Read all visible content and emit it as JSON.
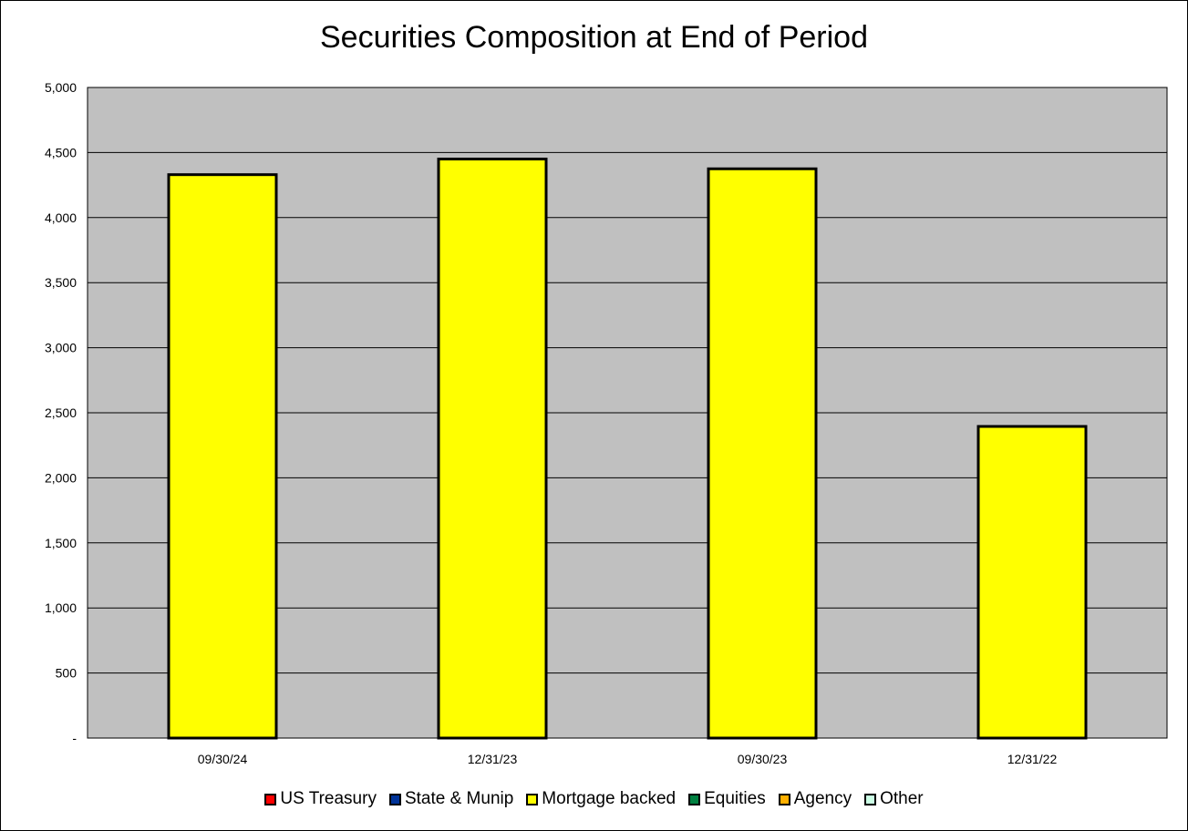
{
  "chart_data": {
    "type": "bar",
    "title": "Securities Composition at End of Period",
    "xlabel": "",
    "ylabel": "",
    "categories": [
      "09/30/24",
      "12/31/23",
      "09/30/23",
      "12/31/22"
    ],
    "ylim": [
      0,
      5000
    ],
    "yticks": [
      0,
      500,
      1000,
      1500,
      2000,
      2500,
      3000,
      3500,
      4000,
      4500,
      5000
    ],
    "ytick_labels": [
      "-",
      "500",
      "1,000",
      "1,500",
      "2,000",
      "2,500",
      "3,000",
      "3,500",
      "4,000",
      "4,500",
      "5,000"
    ],
    "grid": true,
    "stacked": true,
    "legend_position": "bottom",
    "plot_background": "#c0c0c0",
    "series": [
      {
        "name": "US Treasury",
        "color": "#ff0000",
        "values": [
          0,
          0,
          0,
          0
        ]
      },
      {
        "name": "State & Munip",
        "color": "#003399",
        "values": [
          0,
          0,
          0,
          0
        ]
      },
      {
        "name": "Mortgage backed",
        "color": "#ffff00",
        "values": [
          4330,
          4450,
          4375,
          2395
        ]
      },
      {
        "name": "Equities",
        "color": "#008040",
        "values": [
          0,
          0,
          0,
          0
        ]
      },
      {
        "name": "Agency",
        "color": "#ffb000",
        "values": [
          0,
          0,
          0,
          0
        ]
      },
      {
        "name": "Other",
        "color": "#ccffe6",
        "values": [
          0,
          0,
          0,
          0
        ]
      }
    ]
  }
}
